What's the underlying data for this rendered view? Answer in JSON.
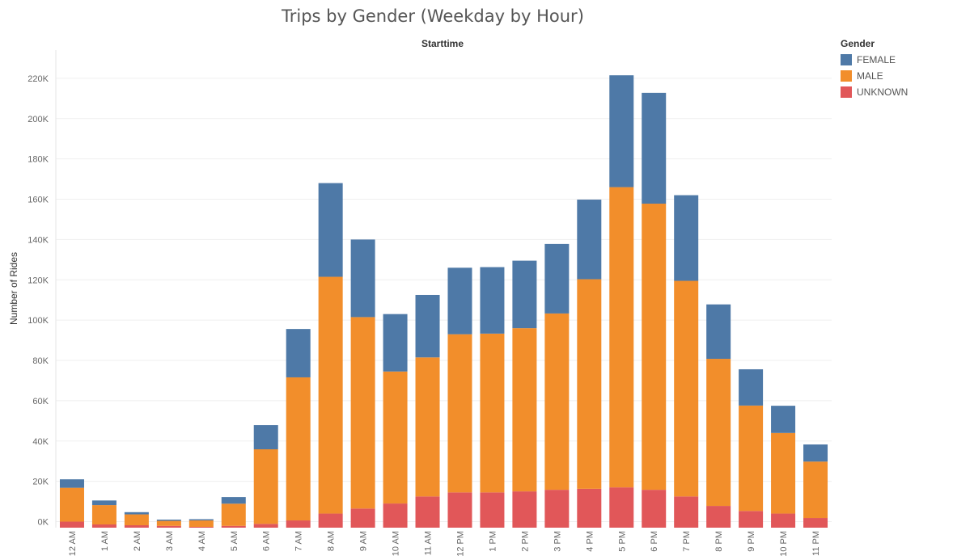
{
  "chart_data": {
    "type": "bar",
    "stacked": true,
    "title": "Trips by Gender (Weekday by Hour)",
    "column_header": "Starttime",
    "ylabel": "Number of Rides",
    "ylim": [
      -3000,
      234000
    ],
    "yticks": [
      0,
      20000,
      40000,
      60000,
      80000,
      100000,
      120000,
      140000,
      160000,
      180000,
      200000,
      220000
    ],
    "ytick_labels": [
      "0K",
      "20K",
      "40K",
      "60K",
      "80K",
      "100K",
      "120K",
      "140K",
      "160K",
      "180K",
      "200K",
      "220K"
    ],
    "grid": "horizontal",
    "legend_title": "Gender",
    "legend_position": "top-right",
    "categories": [
      "12 AM",
      "1 AM",
      "2 AM",
      "3 AM",
      "4 AM",
      "5 AM",
      "6 AM",
      "7 AM",
      "8 AM",
      "9 AM",
      "10 AM",
      "11 AM",
      "12 PM",
      "1 PM",
      "2 PM",
      "3 PM",
      "4 PM",
      "5 PM",
      "6 PM",
      "7 PM",
      "8 PM",
      "9 PM",
      "10 PM",
      "11 PM"
    ],
    "series": [
      {
        "name": "UNKNOWN",
        "color": "#e15759",
        "values": [
          3000,
          1600,
          1200,
          900,
          400,
          900,
          1900,
          3600,
          7000,
          9500,
          12000,
          15500,
          17500,
          17500,
          18000,
          18800,
          19300,
          20000,
          18800,
          15500,
          10800,
          8300,
          7000,
          4800
        ]
      },
      {
        "name": "MALE",
        "color": "#f28e2b",
        "values": [
          16800,
          9600,
          5400,
          2500,
          3200,
          11000,
          37000,
          71000,
          117500,
          95000,
          65500,
          69000,
          78500,
          78800,
          81000,
          87500,
          104000,
          149000,
          142000,
          107000,
          73000,
          52300,
          40000,
          28000
        ]
      },
      {
        "name": "FEMALE",
        "color": "#4e79a7",
        "values": [
          4200,
          2300,
          1100,
          600,
          600,
          3300,
          12000,
          24000,
          46500,
          38500,
          28500,
          31000,
          33000,
          33000,
          33500,
          34500,
          39500,
          55500,
          55000,
          42500,
          27000,
          18000,
          13500,
          8500
        ]
      }
    ],
    "legend_order": [
      "FEMALE",
      "MALE",
      "UNKNOWN"
    ]
  }
}
